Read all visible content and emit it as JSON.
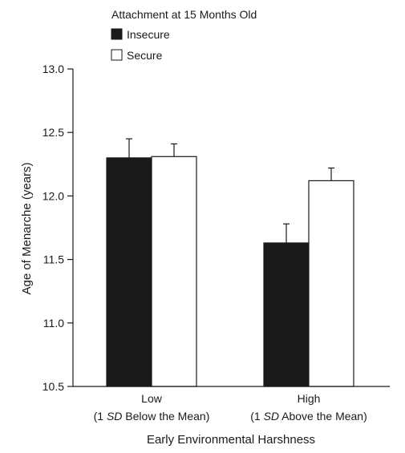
{
  "chart_data": {
    "type": "bar",
    "legend": {
      "title": "Attachment at 15 Months Old",
      "position": "top-left"
    },
    "categories": [
      {
        "line1": "Low",
        "line2_pre": "(1 ",
        "line2_sd": "SD",
        "line2_post": " Below the Mean)"
      },
      {
        "line1": "High",
        "line2_pre": "(1 ",
        "line2_sd": "SD",
        "line2_post": " Above the Mean)"
      }
    ],
    "series": [
      {
        "name": "Insecure",
        "fill": "#1a1a1a",
        "values": [
          12.3,
          11.63
        ],
        "errors": [
          0.15,
          0.15
        ]
      },
      {
        "name": "Secure",
        "fill": "#ffffff",
        "values": [
          12.31,
          12.12
        ],
        "errors": [
          0.1,
          0.1
        ]
      }
    ],
    "xlabel": "Early Environmental Harshness",
    "ylabel": "Age of Menarche (years)",
    "ylim": [
      10.5,
      13.0
    ],
    "yticks": [
      "10.5",
      "11.0",
      "11.5",
      "12.0",
      "12.5",
      "13.0"
    ],
    "grid": false
  }
}
